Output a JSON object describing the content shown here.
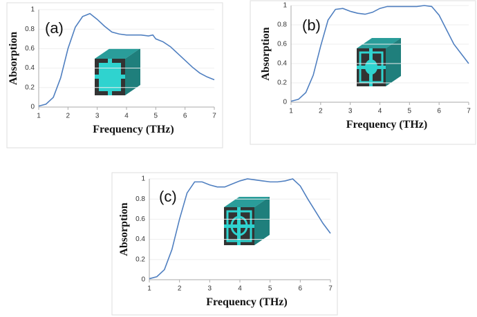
{
  "chart_data": [
    {
      "type": "line",
      "annotation": "(a)",
      "xlabel": "Frequency (THz)",
      "ylabel": "Absorption",
      "color": "#4f7fc0",
      "x": [
        1,
        1.25,
        1.5,
        1.75,
        2,
        2.25,
        2.5,
        2.75,
        3,
        3.25,
        3.5,
        3.75,
        4,
        4.25,
        4.5,
        4.75,
        4.9,
        5,
        5.25,
        5.5,
        5.75,
        6,
        6.25,
        6.5,
        6.75,
        7
      ],
      "values": [
        0.01,
        0.03,
        0.1,
        0.3,
        0.6,
        0.82,
        0.93,
        0.96,
        0.9,
        0.83,
        0.77,
        0.75,
        0.74,
        0.74,
        0.74,
        0.73,
        0.74,
        0.7,
        0.67,
        0.62,
        0.55,
        0.48,
        0.41,
        0.35,
        0.31,
        0.28
      ],
      "xlim": [
        1,
        7
      ],
      "ylim": [
        0,
        1
      ],
      "xticks": [
        1,
        2,
        3,
        4,
        5,
        6,
        7
      ],
      "yticks": [
        0,
        0.2,
        0.4,
        0.6,
        0.8,
        1
      ]
    },
    {
      "type": "line",
      "annotation": "(b)",
      "xlabel": "Frequency (THz)",
      "ylabel": "Absorption",
      "color": "#4f7fc0",
      "x": [
        1,
        1.25,
        1.5,
        1.75,
        2,
        2.25,
        2.5,
        2.75,
        3,
        3.25,
        3.5,
        3.75,
        4,
        4.25,
        4.5,
        4.75,
        5,
        5.25,
        5.5,
        5.75,
        6,
        6.25,
        6.5,
        6.75,
        7
      ],
      "values": [
        0.01,
        0.03,
        0.1,
        0.28,
        0.58,
        0.85,
        0.96,
        0.97,
        0.94,
        0.92,
        0.91,
        0.93,
        0.97,
        0.99,
        0.99,
        0.99,
        0.99,
        0.99,
        1,
        0.99,
        0.9,
        0.75,
        0.6,
        0.5,
        0.4
      ],
      "xlim": [
        1,
        7
      ],
      "ylim": [
        0,
        1
      ],
      "xticks": [
        1,
        2,
        3,
        4,
        5,
        6,
        7
      ],
      "yticks": [
        0,
        0.2,
        0.4,
        0.6,
        0.8,
        1
      ]
    },
    {
      "type": "line",
      "annotation": "(c)",
      "xlabel": "Frequency (THz)",
      "ylabel": "Absorption",
      "color": "#4f7fc0",
      "x": [
        1,
        1.25,
        1.5,
        1.75,
        2,
        2.25,
        2.5,
        2.75,
        3,
        3.25,
        3.5,
        3.75,
        4,
        4.25,
        4.5,
        4.75,
        5,
        5.25,
        5.5,
        5.75,
        6,
        6.25,
        6.5,
        6.75,
        7
      ],
      "values": [
        0.01,
        0.03,
        0.1,
        0.3,
        0.6,
        0.86,
        0.97,
        0.97,
        0.94,
        0.92,
        0.92,
        0.95,
        0.98,
        1,
        0.99,
        0.98,
        0.97,
        0.97,
        0.98,
        1,
        0.93,
        0.8,
        0.68,
        0.56,
        0.46
      ],
      "xlim": [
        1,
        7
      ],
      "ylim": [
        0,
        1
      ],
      "xticks": [
        1,
        2,
        3,
        4,
        5,
        6,
        7
      ],
      "yticks": [
        0,
        0.2,
        0.4,
        0.6,
        0.8,
        1
      ]
    }
  ]
}
